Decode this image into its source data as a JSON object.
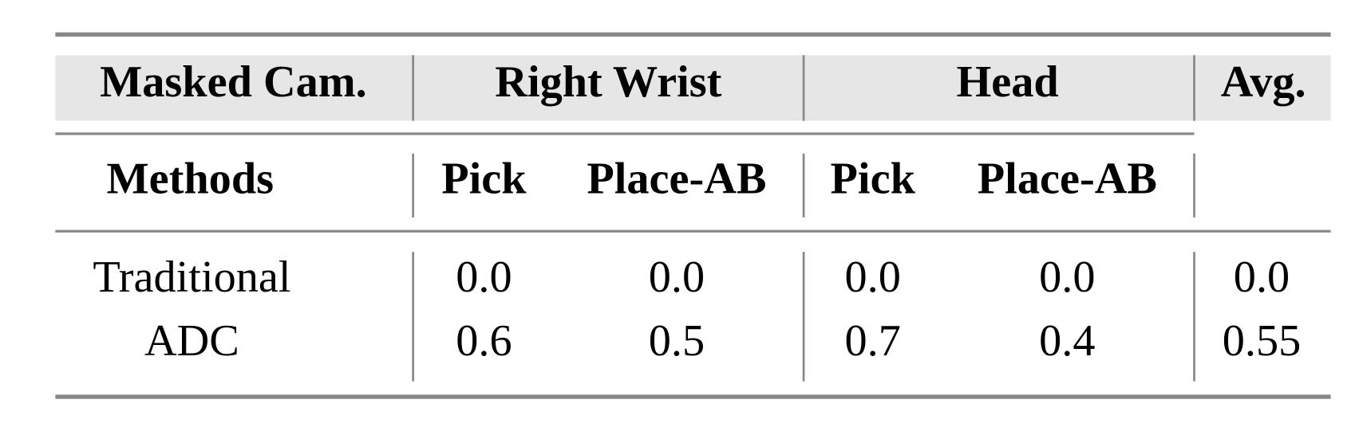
{
  "table": {
    "header_row1": [
      "Masked Cam.",
      "Right Wrist",
      "Head",
      "Avg."
    ],
    "header_row2": [
      "Methods",
      "Pick",
      "Place-AB",
      "Pick",
      "Place-AB"
    ],
    "rows": [
      [
        "Traditional",
        "0.0",
        "0.0",
        "0.0",
        "0.0",
        "0.0"
      ],
      [
        "ADC",
        "0.6",
        "0.5",
        "0.7",
        "0.4",
        "0.55"
      ]
    ]
  }
}
